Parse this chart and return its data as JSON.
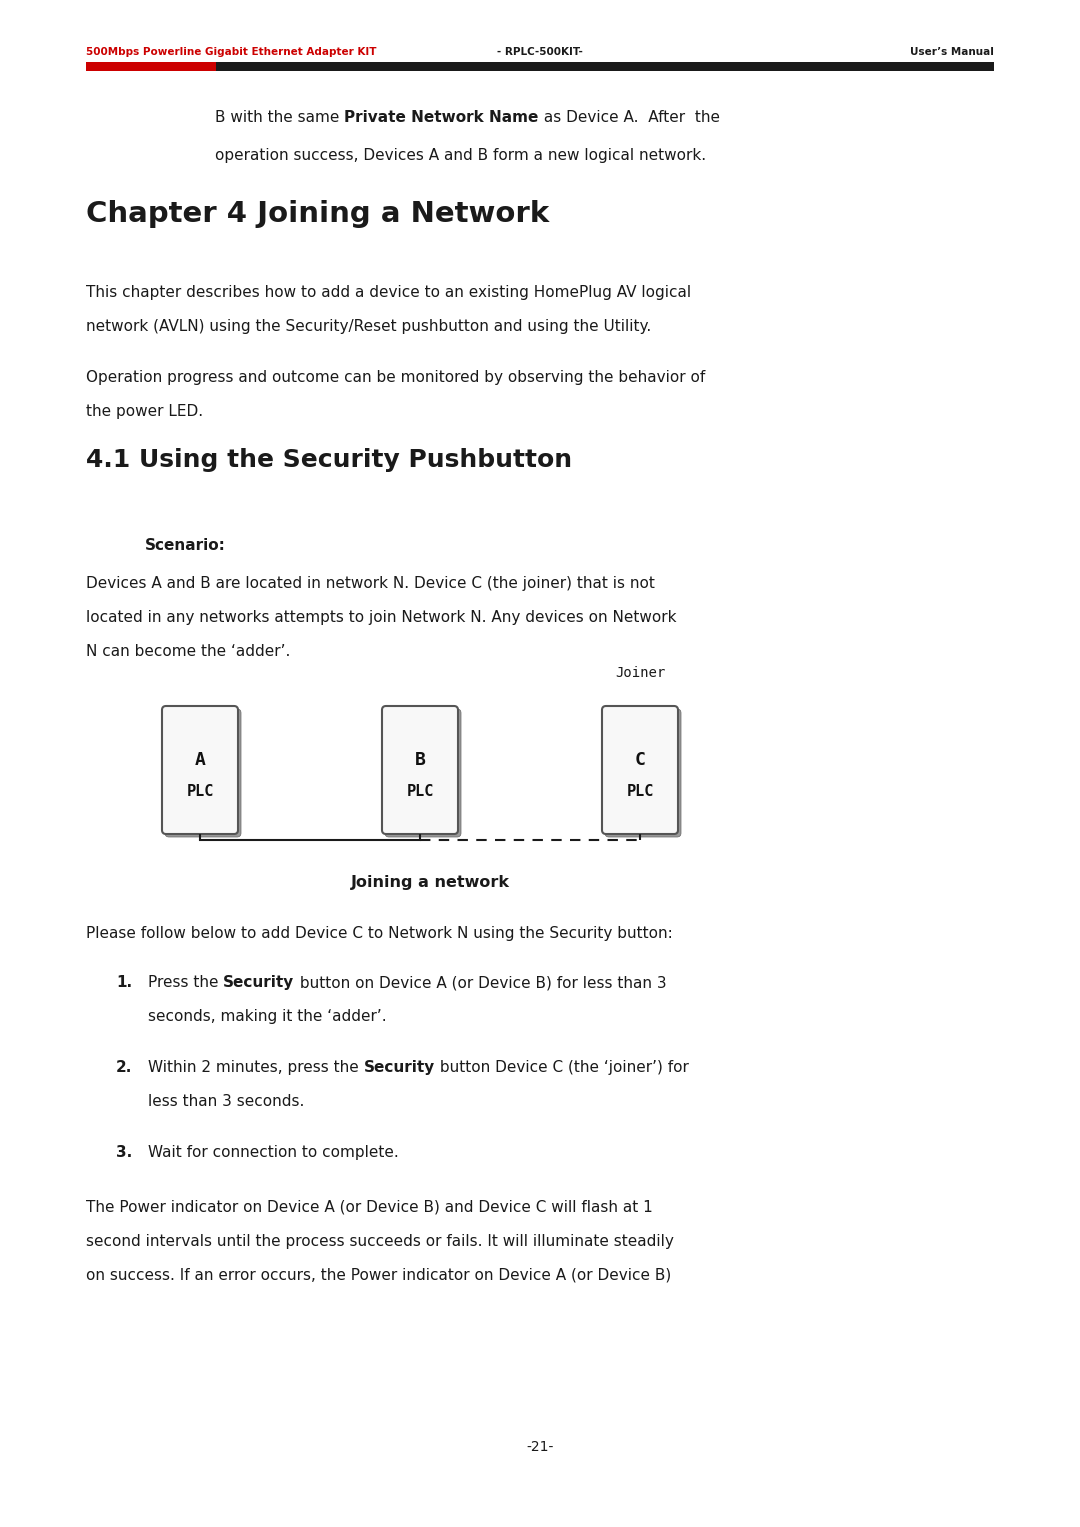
{
  "header_left": "500Mbps Powerline Gigabit Ethernet Adapter KIT",
  "header_center": "- RPLC-500KIT-",
  "header_right": "User’s Manual",
  "header_left_color": "#cc0000",
  "intro_line1_parts": [
    [
      "B with the same ",
      false
    ],
    [
      "Private Network Name",
      true
    ],
    [
      " as Device A.  After  the",
      false
    ]
  ],
  "intro_line2": "operation success, Devices A and B form a new logical network.",
  "chapter_title": "Chapter 4 Joining a Network",
  "para1_line1": "This chapter describes how to add a device to an existing HomePlug AV logical",
  "para1_line2": "network (AVLN) using the Security/Reset pushbutton and using the Utility.",
  "para2_line1": "Operation progress and outcome can be monitored by observing the behavior of",
  "para2_line2": "the power LED.",
  "section_title": "4.1 Using the Security Pushbutton",
  "scenario_label": "Scenario:",
  "scenario_line1": "Devices A and B are located in network N. Device C (the joiner) that is not",
  "scenario_line2": "located in any networks attempts to join Network N. Any devices on Network",
  "scenario_line3": "N can become the ‘adder’.",
  "joiner_label": "Joiner",
  "diagram_caption": "Joining a network",
  "follow_text": "Please follow below to add Device C to Network N using the Security button:",
  "step1_before": "Press the ",
  "step1_bold": "Security",
  "step1_after": " button on Device A (or Device B) for less than 3",
  "step1_line2": "seconds, making it the ‘adder’.",
  "step2_before": "Within 2 minutes, press the ",
  "step2_bold": "Security",
  "step2_after": " button Device C (the ‘joiner’) for",
  "step2_line2": "less than 3 seconds.",
  "step3_text": "Wait for connection to complete.",
  "footer_line1": "The Power indicator on Device A (or Device B) and Device C will flash at 1",
  "footer_line2": "second intervals until the process succeeds or fails. It will illuminate steadily",
  "footer_line3": "on success. If an error occurs, the Power indicator on Device A (or Device B)",
  "page_number": "-21-",
  "bg_color": "#ffffff",
  "text_color": "#1a1a1a",
  "red_color": "#cc0000"
}
